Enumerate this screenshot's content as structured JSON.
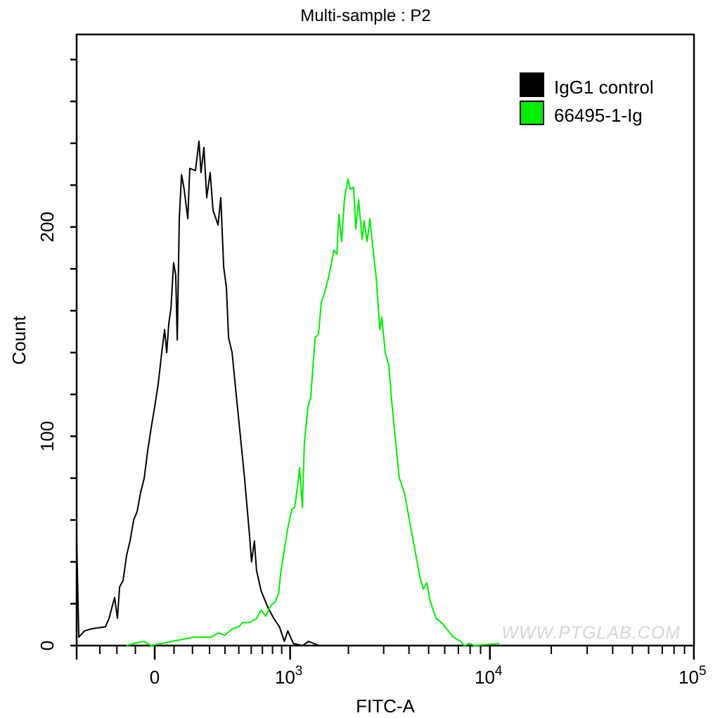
{
  "chart_data": {
    "type": "line",
    "title": "Multi-sample : P2",
    "xlabel": "FITC-A",
    "ylabel": "Count",
    "x_scale": "biexponential",
    "xlim": [
      -455,
      100000
    ],
    "ylim": [
      0,
      292
    ],
    "x_major_ticks": [
      {
        "value": 0,
        "label": "0"
      },
      {
        "value": 1000,
        "label": "10",
        "exp": "3"
      },
      {
        "value": 10000,
        "label": "10",
        "exp": "4"
      },
      {
        "value": 100000,
        "label": "10",
        "exp": "5"
      }
    ],
    "x_minor_ticks": [
      -300,
      -200,
      -100,
      100,
      200,
      300,
      400,
      500,
      600,
      700,
      800,
      900,
      2000,
      3000,
      4000,
      5000,
      6000,
      7000,
      8000,
      9000,
      20000,
      30000,
      40000,
      50000,
      60000,
      70000,
      80000,
      90000
    ],
    "y_ticks": [
      0,
      20,
      40,
      60,
      80,
      100,
      120,
      140,
      160,
      180,
      200,
      220,
      240,
      260,
      280
    ],
    "y_tick_labels": [
      {
        "value": 0,
        "label": "0"
      },
      {
        "value": 100,
        "label": "100"
      },
      {
        "value": 200,
        "label": "200"
      }
    ],
    "grid": false,
    "legend_placement": "top-right",
    "series": [
      {
        "name": "IgG1 control",
        "color": "#000000",
        "x": [
          -455,
          -454,
          -439,
          -400,
          -354,
          -266,
          -245,
          -213,
          -197,
          -185,
          -166,
          -147,
          -128,
          -109,
          -91,
          -73,
          -54,
          -36,
          -18,
          0,
          18,
          36,
          51,
          62,
          73,
          84,
          98,
          109,
          117,
          128,
          140,
          154,
          174,
          185,
          217,
          237,
          249,
          266,
          283,
          304,
          322,
          354,
          372,
          391,
          410,
          425,
          450,
          480,
          512,
          545,
          585,
          603,
          627,
          646,
          689,
          755,
          813,
          874,
          930,
          971,
          1041,
          1162,
          1254,
          1416
        ],
        "y": [
          0,
          50,
          4,
          7,
          8,
          9,
          13,
          23,
          13,
          28,
          31,
          43,
          50,
          60,
          64,
          73,
          80,
          93,
          104,
          114,
          125,
          140,
          151,
          140,
          154,
          161,
          183,
          177,
          146,
          204,
          225,
          218,
          204,
          228,
          227,
          241,
          226,
          238,
          214,
          226,
          208,
          201,
          214,
          181,
          171,
          147,
          140,
          120,
          100,
          80,
          53,
          40,
          50,
          36,
          26,
          18,
          13,
          9,
          2,
          7,
          1,
          0,
          2,
          0
        ]
      },
      {
        "name": "66495-1-Ig",
        "color": "#00ee00",
        "x": [
          -147,
          -109,
          -54,
          -18,
          36,
          91,
          147,
          205,
          266,
          309,
          354,
          400,
          450,
          501,
          528,
          585,
          646,
          689,
          731,
          779,
          829,
          866,
          889,
          930,
          971,
          1019,
          1058,
          1099,
          1124,
          1162,
          1191,
          1243,
          1286,
          1353,
          1410,
          1458,
          1520,
          1597,
          1692,
          1749,
          1791,
          1850,
          1913,
          1993,
          2041,
          2125,
          2179,
          2250,
          2343,
          2398,
          2480,
          2562,
          2644,
          2753,
          2867,
          2935,
          3053,
          3180,
          3285,
          3417,
          3585,
          3799,
          4018,
          4277,
          4523,
          4709,
          4896,
          5096,
          5433,
          5788,
          6124,
          6629,
          7175,
          7467,
          7963,
          8413,
          11111
        ],
        "y": [
          0,
          1,
          2,
          0,
          1,
          2,
          3,
          4,
          4,
          4,
          6,
          5,
          8,
          9,
          11,
          11,
          13,
          17,
          14,
          19,
          21,
          25,
          35,
          46,
          56,
          65,
          66,
          77,
          85,
          66,
          97,
          114,
          119,
          147,
          149,
          164,
          169,
          177,
          189,
          187,
          206,
          193,
          214,
          223,
          218,
          219,
          199,
          213,
          194,
          203,
          193,
          204,
          191,
          176,
          151,
          157,
          140,
          134,
          117,
          100,
          80,
          73,
          60,
          46,
          33,
          27,
          30,
          21,
          13,
          11,
          8,
          4,
          2,
          0,
          1,
          0,
          1
        ]
      }
    ]
  },
  "watermark": "WWW.PTGLAB.COM"
}
